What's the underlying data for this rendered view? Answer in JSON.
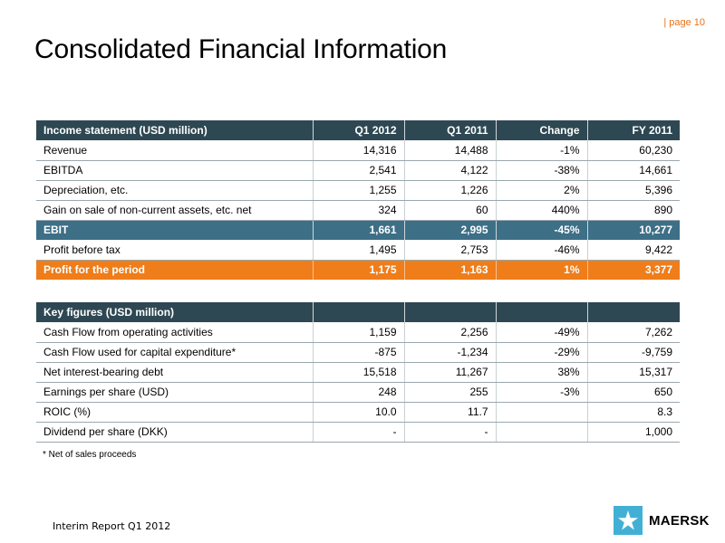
{
  "header": {
    "page_label": "| page 10",
    "title": "Consolidated Financial Information"
  },
  "income_table": {
    "columns": [
      "Income statement (USD million)",
      "Q1 2012",
      "Q1 2011",
      "Change",
      "FY 2011"
    ],
    "rows": [
      {
        "label": "Revenue",
        "values": [
          "14,316",
          "14,488",
          "-1%",
          "60,230"
        ],
        "style": "normal"
      },
      {
        "label": "EBITDA",
        "values": [
          "2,541",
          "4,122",
          "-38%",
          "14,661"
        ],
        "style": "normal"
      },
      {
        "label": "Depreciation, etc.",
        "values": [
          "1,255",
          "1,226",
          "2%",
          "5,396"
        ],
        "style": "normal"
      },
      {
        "label": "Gain on sale of non-current assets, etc. net",
        "values": [
          "324",
          "60",
          "440%",
          "890"
        ],
        "style": "normal"
      },
      {
        "label": "EBIT",
        "values": [
          "1,661",
          "2,995",
          "-45%",
          "10,277"
        ],
        "style": "blue"
      },
      {
        "label": "Profit before tax",
        "values": [
          "1,495",
          "2,753",
          "-46%",
          "9,422"
        ],
        "style": "normal"
      },
      {
        "label": "Profit for the period",
        "values": [
          "1,175",
          "1,163",
          "1%",
          "3,377"
        ],
        "style": "orange"
      }
    ]
  },
  "key_figures_table": {
    "columns": [
      "Key figures (USD million)",
      "",
      "",
      "",
      ""
    ],
    "rows": [
      {
        "label": "Cash Flow from operating activities",
        "values": [
          "1,159",
          "2,256",
          "-49%",
          "7,262"
        ],
        "style": "normal"
      },
      {
        "label": "Cash Flow used for capital expenditure*",
        "values": [
          "-875",
          "-1,234",
          "-29%",
          "-9,759"
        ],
        "style": "normal"
      },
      {
        "label": "Net interest-bearing debt",
        "values": [
          "15,518",
          "11,267",
          "38%",
          "15,317"
        ],
        "style": "normal"
      },
      {
        "label": "Earnings per share (USD)",
        "values": [
          "248",
          "255",
          "-3%",
          "650"
        ],
        "style": "normal"
      },
      {
        "label": "ROIC (%)",
        "values": [
          "10.0",
          "11.7",
          "",
          "8.3"
        ],
        "style": "normal"
      },
      {
        "label": "Dividend per share (DKK)",
        "values": [
          "-",
          "-",
          "",
          "1,000"
        ],
        "style": "normal"
      }
    ]
  },
  "footnote": "* Net of sales proceeds",
  "footer": {
    "report_label": "Interim Report Q1 2012",
    "logo_text": "MAERSK",
    "logo_icon": "star-icon",
    "logo_color": "#42b0d5"
  },
  "colors": {
    "header_bg": "#2e4853",
    "highlight_blue": "#3d6f87",
    "highlight_orange": "#ef7d1a",
    "page_label": "#e8731a"
  }
}
